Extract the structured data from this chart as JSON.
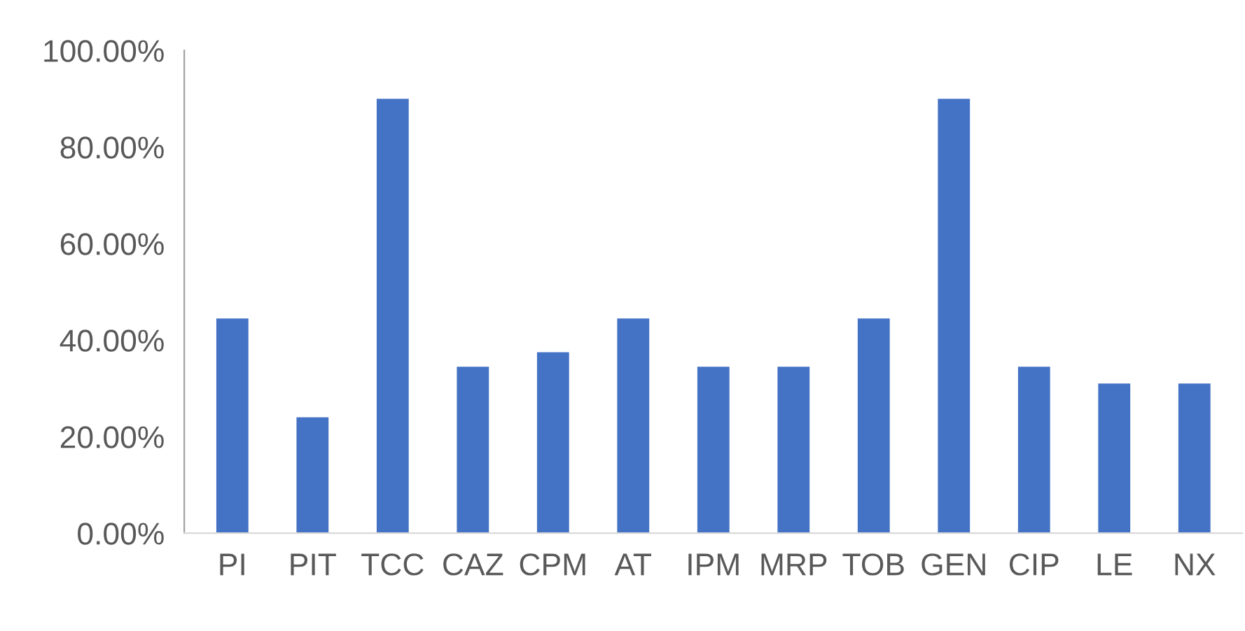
{
  "chart_data": {
    "type": "bar",
    "categories": [
      "PI",
      "PIT",
      "TCC",
      "CAZ",
      "CPM",
      "AT",
      "IPM",
      "MRP",
      "TOB",
      "GEN",
      "CIP",
      "LE",
      "NX"
    ],
    "values": [
      44.5,
      24,
      90,
      34.5,
      37.5,
      44.5,
      34.5,
      34.5,
      44.5,
      90,
      34.5,
      31,
      31
    ],
    "color": "#4472c4",
    "ylim": [
      0,
      100
    ],
    "yticks": [
      {
        "value": 0,
        "label": "0.00%"
      },
      {
        "value": 20,
        "label": "20.00%"
      },
      {
        "value": 40,
        "label": "40.00%"
      },
      {
        "value": 60,
        "label": "60.00%"
      },
      {
        "value": 80,
        "label": "80.00%"
      },
      {
        "value": 100,
        "label": "100.00%"
      }
    ],
    "grid": false,
    "legend": false
  }
}
